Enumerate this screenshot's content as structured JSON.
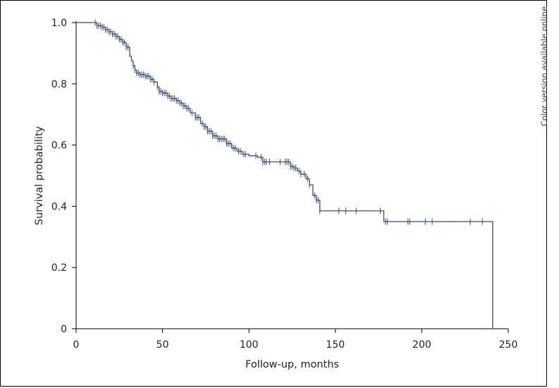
{
  "side_note": "Color version available online",
  "colors": {
    "curve": "#3b4a7a",
    "axis": "#000000"
  },
  "chart_data": {
    "type": "line",
    "title": "",
    "xlabel": "Follow-up, months",
    "ylabel": "Survival probability",
    "xlim": [
      0,
      250
    ],
    "ylim": [
      0,
      1.0
    ],
    "x_ticks": [
      "0",
      "50",
      "100",
      "150",
      "200",
      "250"
    ],
    "x_tick_values": [
      0,
      50,
      100,
      150,
      200,
      250
    ],
    "y_ticks": [
      "0",
      "0.2",
      "0.4",
      "0.6",
      "0.8",
      "1.0"
    ],
    "y_tick_values": [
      0,
      0.2,
      0.4,
      0.6,
      0.8,
      1.0
    ],
    "grid": false,
    "legend": "none",
    "series": [
      {
        "step": "post",
        "x": [
          0,
          12,
          15,
          17,
          19,
          21,
          23,
          25,
          27,
          29,
          31,
          32,
          33,
          34,
          35,
          37,
          40,
          43,
          45,
          47,
          48,
          50,
          53,
          55,
          58,
          60,
          62,
          64,
          66,
          69,
          72,
          74,
          76,
          79,
          82,
          87,
          90,
          93,
          96,
          100,
          105,
          108,
          112,
          118,
          122,
          124,
          126,
          128,
          130,
          133,
          135,
          137,
          139,
          141,
          145,
          150,
          160,
          170,
          178,
          180,
          190,
          200,
          210,
          220,
          230,
          235,
          240,
          241
        ],
        "y": [
          1.0,
          0.99,
          0.985,
          0.977,
          0.97,
          0.963,
          0.955,
          0.945,
          0.935,
          0.92,
          0.89,
          0.875,
          0.86,
          0.845,
          0.835,
          0.83,
          0.825,
          0.815,
          0.806,
          0.79,
          0.775,
          0.77,
          0.76,
          0.752,
          0.745,
          0.737,
          0.728,
          0.72,
          0.705,
          0.69,
          0.67,
          0.66,
          0.645,
          0.63,
          0.62,
          0.605,
          0.59,
          0.58,
          0.57,
          0.565,
          0.56,
          0.545,
          0.545,
          0.545,
          0.545,
          0.53,
          0.525,
          0.515,
          0.505,
          0.49,
          0.47,
          0.435,
          0.42,
          0.385,
          0.385,
          0.385,
          0.385,
          0.385,
          0.35,
          0.35,
          0.35,
          0.35,
          0.35,
          0.35,
          0.35,
          0.35,
          0.35,
          0.0
        ]
      }
    ],
    "censor_times": [
      11,
      12,
      13,
      14,
      15,
      16,
      17,
      18,
      19,
      20,
      21,
      22,
      23,
      24,
      25,
      26,
      27,
      28,
      29,
      30,
      33,
      34,
      35,
      36,
      37,
      38,
      39,
      40,
      41,
      42,
      43,
      44,
      45,
      47,
      48,
      49,
      50,
      51,
      52,
      53,
      54,
      55,
      56,
      57,
      58,
      59,
      60,
      61,
      62,
      63,
      64,
      65,
      67,
      69,
      70,
      71,
      73,
      74,
      75,
      76,
      77,
      78,
      79,
      80,
      81,
      82,
      83,
      84,
      85,
      86,
      87,
      88,
      89,
      91,
      92,
      94,
      95,
      97,
      98,
      104,
      107,
      108,
      109,
      110,
      112,
      118,
      121,
      122,
      123,
      124,
      125,
      126,
      127,
      129,
      130,
      132,
      134,
      135,
      138,
      139,
      140,
      141,
      152,
      156,
      162,
      176,
      179,
      180,
      192,
      193,
      202,
      206,
      228,
      235
    ]
  }
}
